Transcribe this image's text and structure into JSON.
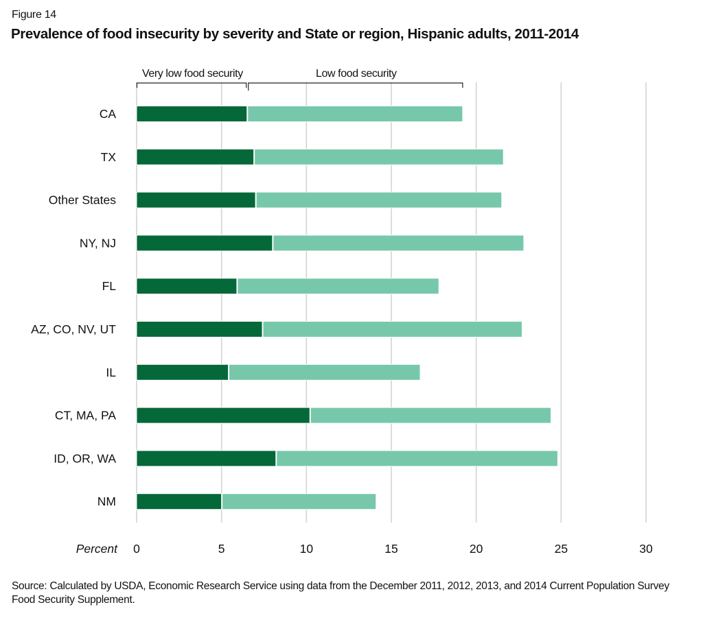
{
  "figure_label": "Figure 14",
  "title": "Prevalence of food insecurity by severity and State or region, Hispanic adults, 2011-2014",
  "source": "Source: Calculated by USDA, Economic Research Service using data from the December 2011, 2012, 2013, and 2014 Current Population Survey Food Security Supplement.",
  "chart_data": {
    "type": "bar",
    "orientation": "horizontal",
    "stacked": true,
    "title": "Prevalence of food insecurity by severity and State or region, Hispanic adults, 2011-2014",
    "xlabel": "Percent",
    "ylabel": "",
    "xlim": [
      0,
      30
    ],
    "xticks": [
      0,
      5,
      10,
      15,
      20,
      25,
      30
    ],
    "xtick_labels": [
      "0",
      "5",
      "10",
      "15",
      "20",
      "25",
      "30"
    ],
    "grid": "vertical",
    "legend_placement": "top (bracket annotations above first bar)",
    "categories": [
      "CA",
      "TX",
      "Other States",
      "NY, NJ",
      "FL",
      "AZ, CO, NV, UT",
      "IL",
      "CT, MA, PA",
      "ID, OR, WA",
      "NM"
    ],
    "series": [
      {
        "name": "Very low food security",
        "color": "#056839",
        "values": [
          6.5,
          6.9,
          7.0,
          8.0,
          5.9,
          7.4,
          5.4,
          10.2,
          8.2,
          5.0
        ]
      },
      {
        "name": "Low food security",
        "color": "#77c8ab",
        "values": [
          12.7,
          14.7,
          14.5,
          14.8,
          11.9,
          15.3,
          11.3,
          14.2,
          16.6,
          9.1
        ]
      }
    ],
    "totals": [
      19.2,
      21.6,
      21.5,
      22.8,
      17.8,
      22.7,
      16.7,
      24.4,
      24.8,
      14.1
    ]
  }
}
